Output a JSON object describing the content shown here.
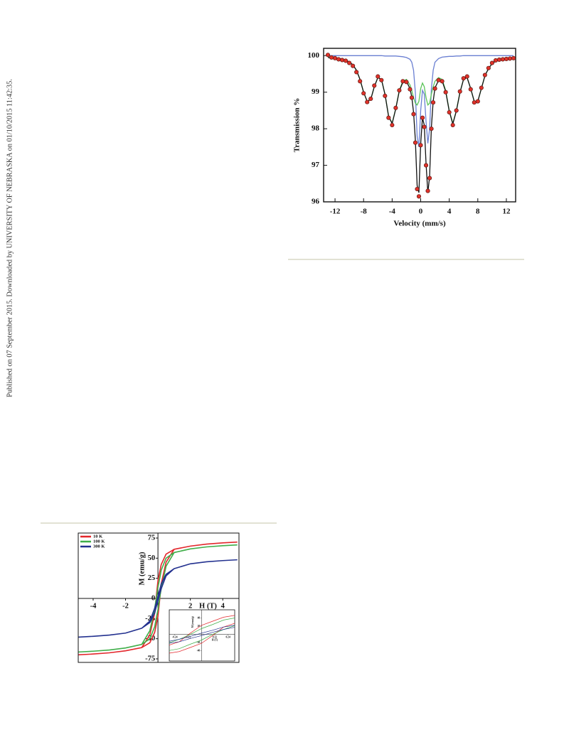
{
  "side_note": "Published on 07 September 2015. Downloaded by UNIVERSITY OF NEBRASKA on 01/10/2015 11:42:35.",
  "chart_data": [
    {
      "type": "line",
      "xlabel": "Velocity (mm/s)",
      "ylabel": "Transmission %",
      "xlim": [
        -13.6,
        13.3
      ],
      "ylim": [
        96,
        100.2
      ],
      "xticks": [
        -12,
        -8,
        -4,
        0,
        4,
        8,
        12
      ],
      "yticks": [
        96,
        97,
        98,
        99,
        100
      ],
      "x": [
        -13,
        -12.5,
        -12,
        -11.5,
        -11,
        -10.5,
        -10,
        -9.5,
        -9,
        -8.5,
        -8,
        -7.5,
        -7,
        -6.5,
        -6,
        -5.5,
        -5,
        -4.5,
        -4,
        -3.5,
        -3,
        -2.5,
        -2,
        -1.5,
        -1.25,
        -1,
        -0.75,
        -0.5,
        -0.25,
        0,
        0.25,
        0.5,
        0.75,
        1,
        1.25,
        1.5,
        1.75,
        2,
        2.5,
        3,
        3.5,
        4,
        4.5,
        5,
        5.5,
        6,
        6.5,
        7,
        7.5,
        8,
        8.5,
        9,
        9.5,
        10,
        10.5,
        11,
        11.5,
        12,
        12.5,
        13
      ],
      "series": [
        {
          "color": "#6a7fd2",
          "values": [
            100,
            100,
            100,
            100,
            100,
            100,
            100,
            100,
            100,
            100,
            100,
            100,
            100,
            100,
            100,
            100,
            99.99,
            99.99,
            99.99,
            99.99,
            99.98,
            99.97,
            99.95,
            99.9,
            99.82,
            99.6,
            99.0,
            97.8,
            97.5,
            98.5,
            99.05,
            98.95,
            98.2,
            97.6,
            98.0,
            99.1,
            99.6,
            99.82,
            99.92,
            99.96,
            99.97,
            99.98,
            99.98,
            99.99,
            99.99,
            100,
            100,
            100,
            100,
            100,
            100,
            100,
            100,
            100,
            100,
            100,
            100,
            100,
            100,
            100
          ]
        },
        {
          "color": "#5cc45a",
          "values": [
            99.95,
            99.94,
            99.93,
            99.92,
            99.9,
            99.87,
            99.83,
            99.75,
            99.6,
            99.35,
            99.0,
            98.75,
            98.8,
            99.15,
            99.4,
            99.35,
            98.95,
            98.35,
            98.15,
            98.55,
            99.05,
            99.3,
            99.35,
            99.2,
            99.05,
            98.85,
            98.7,
            98.65,
            98.75,
            99.1,
            99.25,
            99.15,
            98.85,
            98.65,
            98.7,
            98.95,
            99.15,
            99.3,
            99.4,
            99.35,
            99.05,
            98.5,
            98.15,
            98.5,
            99.0,
            99.35,
            99.4,
            99.1,
            98.75,
            98.75,
            99.1,
            99.45,
            99.65,
            99.78,
            99.85,
            99.88,
            99.9,
            99.92,
            99.93,
            99.94
          ]
        },
        {
          "color": "#111111",
          "values": [
            99.95,
            99.94,
            99.93,
            99.92,
            99.9,
            99.87,
            99.83,
            99.75,
            99.6,
            99.35,
            99.0,
            98.75,
            98.8,
            99.15,
            99.4,
            99.35,
            98.94,
            98.34,
            98.14,
            98.54,
            99.03,
            99.27,
            99.3,
            99.1,
            98.87,
            98.45,
            97.7,
            96.45,
            96.25,
            97.6,
            98.3,
            98.1,
            97.05,
            96.25,
            96.7,
            98.05,
            98.75,
            99.12,
            99.32,
            99.31,
            99.02,
            98.48,
            98.13,
            98.49,
            98.99,
            99.35,
            99.4,
            99.1,
            98.75,
            98.75,
            99.1,
            99.45,
            99.65,
            99.78,
            99.85,
            99.88,
            99.9,
            99.92,
            99.93,
            99.94
          ]
        },
        {
          "color": "#e0322a",
          "markers": true,
          "values": [
            100.02,
            99.95,
            99.93,
            99.9,
            99.88,
            99.86,
            99.8,
            99.72,
            99.55,
            99.3,
            98.97,
            98.73,
            98.82,
            99.18,
            99.43,
            99.33,
            98.9,
            98.3,
            98.1,
            98.57,
            99.05,
            99.3,
            99.28,
            99.08,
            98.85,
            98.4,
            97.62,
            96.35,
            96.15,
            97.55,
            98.3,
            98.05,
            97.0,
            96.3,
            96.65,
            98.0,
            98.72,
            99.1,
            99.33,
            99.3,
            99.0,
            98.45,
            98.1,
            98.5,
            99.02,
            99.38,
            99.43,
            99.08,
            98.72,
            98.75,
            99.12,
            99.47,
            99.66,
            99.8,
            99.87,
            99.89,
            99.9,
            99.91,
            99.92,
            99.93
          ]
        }
      ]
    },
    {
      "type": "line",
      "xlabel": "H (T)",
      "ylabel": "M (emu/g)",
      "xlim": [
        -4.92,
        5.0
      ],
      "ylim": [
        -79.4,
        81.2
      ],
      "xticks": [
        -4,
        -2,
        2,
        4
      ],
      "yticks": [
        -75,
        -50,
        -25,
        0,
        25,
        50,
        75
      ],
      "x": [
        4.9,
        4,
        3,
        2,
        1,
        0.5,
        0.2,
        0.1,
        0,
        -0.1,
        -0.2,
        -0.5,
        -1,
        -2,
        -3,
        -4,
        -4.9,
        -4,
        -3,
        -2,
        -1,
        -0.5,
        -0.2,
        -0.1,
        0,
        0.1,
        0.2,
        0.5,
        1,
        2,
        3,
        4,
        4.9
      ],
      "series": [
        {
          "name": "10 K",
          "color": "#e3262b",
          "values": [
            70,
            69,
            67.5,
            65,
            61,
            55,
            42,
            32,
            22,
            3,
            -18,
            -45,
            -61,
            -65,
            -67.5,
            -69,
            -70,
            -69,
            -67.5,
            -65,
            -61,
            -55,
            -42,
            -32,
            -22,
            -3,
            18,
            45,
            61,
            65,
            67.5,
            69,
            70
          ]
        },
        {
          "name": "100 K",
          "color": "#3fae49",
          "values": [
            66.5,
            65.5,
            64,
            61.5,
            57,
            50,
            35,
            24,
            14,
            0,
            -12,
            -40,
            -57,
            -61.5,
            -64,
            -65.5,
            -66.5,
            -65.5,
            -64,
            -61.5,
            -57,
            -50,
            -35,
            -24,
            -14,
            0,
            12,
            40,
            57,
            61.5,
            64,
            65.5,
            66.5
          ]
        },
        {
          "name": "300 K",
          "color": "#23318f",
          "values": [
            48,
            47,
            45.5,
            43,
            37,
            30,
            18,
            10,
            3,
            -5,
            -12,
            -28,
            -37,
            -43,
            -45.5,
            -47,
            -48,
            -47,
            -45.5,
            -43,
            -37,
            -30,
            -18,
            -10,
            -3,
            5,
            12,
            28,
            37,
            43,
            45.5,
            47,
            48
          ]
        }
      ],
      "inset": {
        "xlabel": "H (T)",
        "ylabel": "M (emu/g)",
        "xlim": [
          -0.29,
          0.3
        ],
        "ylim": [
          -65,
          60
        ],
        "xticks": [
          -0.24,
          -0.12,
          0.12,
          0.24
        ],
        "yticks": [
          -40,
          -20,
          20,
          40
        ]
      }
    }
  ]
}
